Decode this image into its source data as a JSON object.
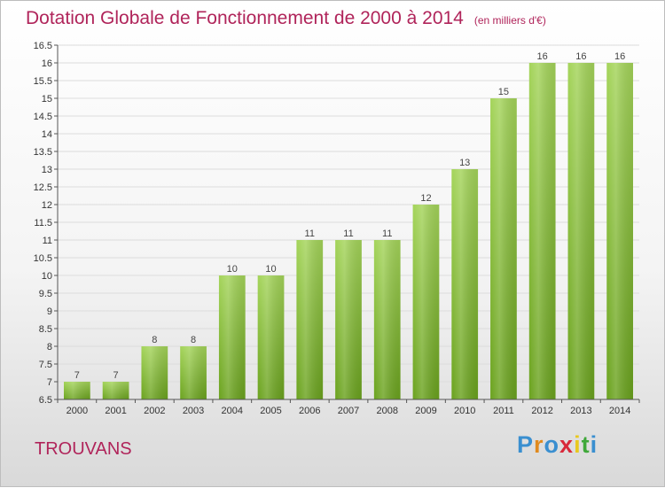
{
  "title": "Dotation Globale de Fonctionnement de 2000 à 2014",
  "subtitle": "(en milliers d'€)",
  "commune": "TROUVANS",
  "logo": {
    "letters": [
      "P",
      "r",
      "o",
      "x",
      "i",
      "t",
      "i"
    ],
    "colors": [
      "#3a8fd0",
      "#e08a1e",
      "#3a8fd0",
      "#d8283a",
      "#e8c81e",
      "#3fa83a",
      "#3a8fd0"
    ]
  },
  "colors": {
    "bar_top": "#a4d45a",
    "bar_bottom": "#6aa21e",
    "accent": "#b0245a"
  },
  "chart_data": {
    "type": "bar",
    "categories": [
      "2000",
      "2001",
      "2002",
      "2003",
      "2004",
      "2005",
      "2006",
      "2007",
      "2008",
      "2009",
      "2010",
      "2011",
      "2012",
      "2013",
      "2014"
    ],
    "values": [
      7,
      7,
      8,
      8,
      10,
      10,
      11,
      11,
      11,
      12,
      13,
      15,
      16,
      16,
      16
    ],
    "data_labels": [
      "7",
      "7",
      "8",
      "8",
      "10",
      "10",
      "11",
      "11",
      "11",
      "12",
      "13",
      "15",
      "16",
      "16",
      "16"
    ],
    "title": "Dotation Globale de Fonctionnement de 2000 à 2014",
    "ylim": [
      6.5,
      16.5
    ],
    "yticks": [
      6.5,
      7,
      7.5,
      8,
      8.5,
      9,
      9.5,
      10,
      10.5,
      11,
      11.5,
      12,
      12.5,
      13,
      13.5,
      14,
      14.5,
      15,
      15.5,
      16,
      16.5
    ],
    "ytick_labels": [
      "6.5",
      "7",
      "7.5",
      "8",
      "8.5",
      "9",
      "9.5",
      "10",
      "10.5",
      "11",
      "11.5",
      "12",
      "12.5",
      "13",
      "13.5",
      "14",
      "14.5",
      "15",
      "15.5",
      "16",
      "16.5"
    ],
    "grid": true,
    "legend": "none"
  }
}
